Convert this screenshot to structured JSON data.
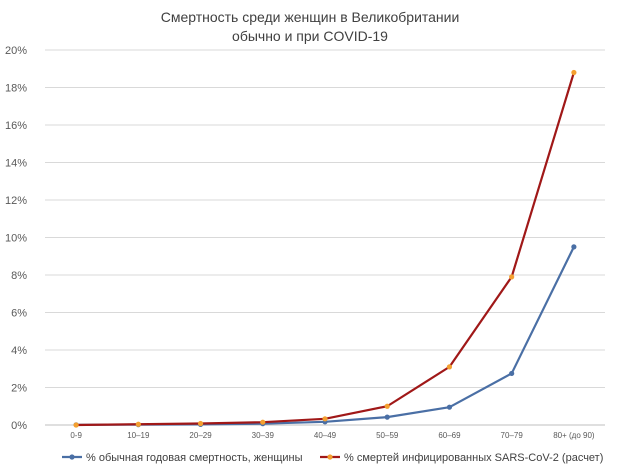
{
  "chart_data": {
    "type": "line",
    "title": [
      "Смертность среди женщин в Великобритании",
      "обычно и при COVID-19"
    ],
    "xlabel": "",
    "ylabel": "",
    "categories": [
      "0-9",
      "10–19",
      "20–29",
      "30–39",
      "40–49",
      "50–59",
      "60–69",
      "70–79",
      "80+ (до 90)"
    ],
    "y_ticks": [
      "0%",
      "2%",
      "4%",
      "6%",
      "8%",
      "10%",
      "12%",
      "14%",
      "16%",
      "18%",
      "20%"
    ],
    "ylim": [
      0,
      20
    ],
    "grid": true,
    "legend_position": "bottom",
    "series": [
      {
        "name": "% обычная годовая смертность, женщины",
        "color": "#4a6fa5",
        "marker_color": "#4a6fa5",
        "values": [
          0.01,
          0.02,
          0.03,
          0.07,
          0.17,
          0.42,
          0.95,
          2.75,
          9.5
        ]
      },
      {
        "name": "% смертей инфицированных SARS-CoV-2 (расчет)",
        "color": "#a01818",
        "marker_color": "#f4a030",
        "values": [
          0.0,
          0.04,
          0.08,
          0.15,
          0.33,
          1.0,
          3.1,
          7.9,
          18.8
        ]
      }
    ]
  }
}
